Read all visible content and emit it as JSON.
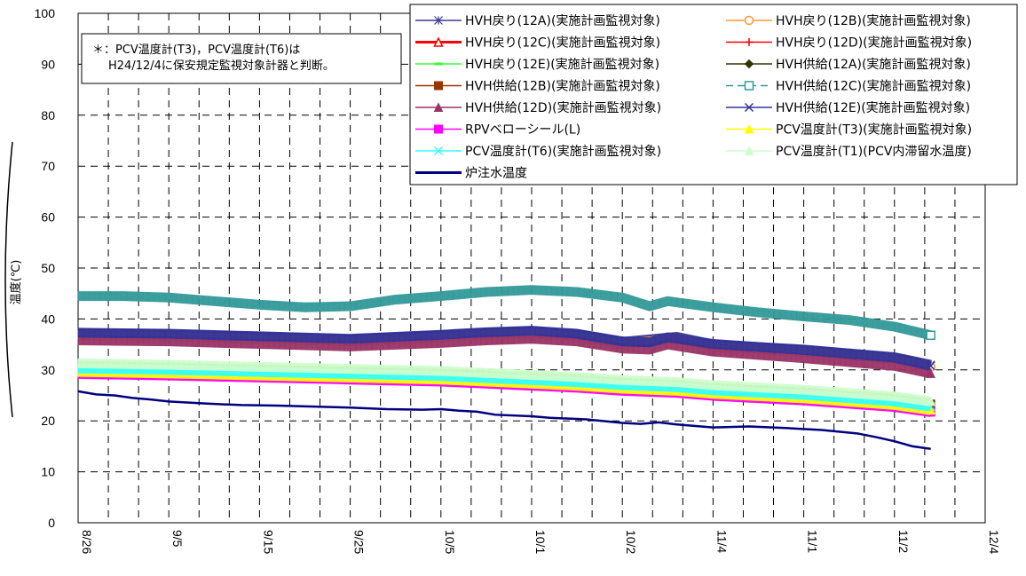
{
  "chart_data": {
    "type": "line",
    "title": "",
    "ylabel": "温度(℃)",
    "xlabel": "",
    "ylim": [
      0,
      100
    ],
    "y_ticks": [
      0,
      10,
      20,
      30,
      40,
      50,
      60,
      70,
      80,
      90,
      100
    ],
    "x_tick_labels": [
      "8/26",
      "9/5",
      "9/15",
      "9/25",
      "10/5",
      "10/1",
      "10/2",
      "11/4",
      "11/1",
      "11/2",
      "12/4"
    ],
    "x_range_days": [
      0,
      100
    ],
    "grid": {
      "major": true,
      "minor_vertical_dashed": true,
      "style": "dashed"
    },
    "legend_position": "top-right",
    "note": {
      "line1": "＊：PCV温度計(T3)，PCV温度計(T6)は",
      "line2": "H24/12/4に保安規定監視対象計器と判断。"
    },
    "series": [
      {
        "name": "HVH戻り(12A)(実施計画監視対象)",
        "color": "#3c3c8c",
        "marker": "star",
        "x": [
          0,
          10,
          20,
          30,
          40,
          45,
          50,
          55,
          60,
          66,
          70,
          80,
          90,
          94
        ],
        "y": [
          37.2,
          37.0,
          36.5,
          36.0,
          36.8,
          37.3,
          37.6,
          37.0,
          35.5,
          36.5,
          35.0,
          34.0,
          32.5,
          31.0
        ]
      },
      {
        "name": "HVH戻り(12B)(実施計画監視対象)",
        "color": "#ff9933",
        "marker": "circle",
        "x": [
          0,
          10,
          20,
          30,
          40,
          45,
          50,
          55,
          60,
          66,
          70,
          80,
          90,
          94
        ],
        "y": [
          36.8,
          36.6,
          36.1,
          35.6,
          36.4,
          36.9,
          37.2,
          36.6,
          35.1,
          36.1,
          34.6,
          33.6,
          32.1,
          30.6
        ]
      },
      {
        "name": "HVH戻り(12C)(実施計画監視対象)",
        "color": "#ff0000",
        "marker": "triangle-open",
        "x": [
          0,
          10,
          20,
          30,
          40,
          45,
          50,
          55,
          60,
          66,
          70,
          80,
          90,
          94
        ],
        "y": [
          29.5,
          29.2,
          28.8,
          28.4,
          28.0,
          27.6,
          27.2,
          26.8,
          26.2,
          25.8,
          25.2,
          24.3,
          23.0,
          22.0
        ]
      },
      {
        "name": "HVH戻り(12D)(実施計画監視対象)",
        "color": "#ff0000",
        "marker": "plus",
        "x": [
          0,
          10,
          20,
          30,
          40,
          45,
          50,
          55,
          60,
          66,
          70,
          80,
          90,
          94
        ],
        "y": [
          29.8,
          29.5,
          29.1,
          28.7,
          28.3,
          27.9,
          27.5,
          27.1,
          26.5,
          26.1,
          25.5,
          24.6,
          23.3,
          22.3
        ]
      },
      {
        "name": "HVH戻り(12E)(実施計画監視対象)",
        "color": "#33ff33",
        "marker": "dash",
        "x": [
          0,
          10,
          20,
          30,
          40,
          45,
          50,
          55,
          60,
          66,
          70,
          80,
          90,
          94
        ],
        "y": [
          30.2,
          29.9,
          29.5,
          29.1,
          28.7,
          28.3,
          27.9,
          27.5,
          26.9,
          26.5,
          25.9,
          25.0,
          23.7,
          22.7
        ]
      },
      {
        "name": "HVH供給(12A)(実施計画監視対象)",
        "color": "#333300",
        "marker": "diamond",
        "x": [
          0,
          10,
          20,
          30,
          40,
          45,
          50,
          55,
          60,
          66,
          70,
          80,
          90,
          94
        ],
        "y": [
          30.5,
          30.2,
          29.8,
          29.4,
          29.0,
          28.6,
          28.2,
          27.8,
          27.2,
          26.8,
          26.2,
          25.3,
          24.0,
          23.0
        ]
      },
      {
        "name": "HVH供給(12B)(実施計画監視対象)",
        "color": "#993300",
        "marker": "square",
        "x": [
          0,
          10,
          20,
          30,
          40,
          45,
          50,
          55,
          60,
          66,
          70,
          80,
          90,
          94
        ],
        "y": [
          30.8,
          30.5,
          30.1,
          29.7,
          29.3,
          28.9,
          28.5,
          28.1,
          27.5,
          27.1,
          26.5,
          25.6,
          24.3,
          23.3
        ]
      },
      {
        "name": "HVH供給(12C)(実施計画監視対象)",
        "color": "#339999",
        "marker": "square-open",
        "dashed": true,
        "x": [
          0,
          5,
          10,
          15,
          20,
          25,
          30,
          35,
          40,
          45,
          50,
          55,
          60,
          63,
          65,
          70,
          75,
          80,
          85,
          90,
          94
        ],
        "y": [
          44.5,
          44.5,
          44.2,
          43.5,
          42.8,
          42.3,
          42.5,
          43.8,
          44.5,
          45.3,
          45.7,
          45.3,
          44.2,
          42.5,
          43.5,
          42.3,
          41.3,
          40.5,
          39.8,
          38.5,
          36.8
        ]
      },
      {
        "name": "HVH供給(12D)(実施計画監視対象)",
        "color": "#993366",
        "marker": "triangle",
        "x": [
          0,
          10,
          20,
          30,
          40,
          45,
          50,
          55,
          60,
          63,
          65,
          70,
          80,
          90,
          94
        ],
        "y": [
          35.8,
          35.6,
          35.1,
          34.6,
          35.3,
          35.8,
          36.1,
          35.6,
          34.2,
          34.0,
          35.0,
          33.6,
          32.3,
          30.8,
          29.3
        ]
      },
      {
        "name": "HVH供給(12E)(実施計画監視対象)",
        "color": "#333399",
        "marker": "x",
        "x": [
          0,
          10,
          20,
          30,
          40,
          45,
          50,
          55,
          60,
          63,
          65,
          70,
          80,
          90,
          94
        ],
        "y": [
          37.3,
          37.1,
          36.6,
          36.1,
          36.9,
          37.4,
          37.7,
          37.1,
          35.6,
          35.4,
          36.4,
          35.1,
          33.9,
          32.4,
          30.8
        ]
      },
      {
        "name": "RPVベローシール(L)",
        "color": "#ff00ff",
        "marker": "square",
        "x": [
          0,
          10,
          20,
          30,
          40,
          45,
          50,
          55,
          60,
          66,
          70,
          80,
          90,
          94
        ],
        "y": [
          29.2,
          28.9,
          28.5,
          28.1,
          27.7,
          27.3,
          26.9,
          26.5,
          25.9,
          25.5,
          24.9,
          24.0,
          22.7,
          21.7
        ]
      },
      {
        "name": "PCV温度計(T3)(実施計画監視対象)",
        "color": "#ffff00",
        "marker": "triangle",
        "x": [
          0,
          10,
          20,
          30,
          40,
          45,
          50,
          55,
          60,
          66,
          70,
          80,
          90,
          94
        ],
        "y": [
          29.6,
          29.3,
          28.9,
          28.5,
          28.1,
          27.7,
          27.3,
          26.9,
          26.3,
          25.9,
          25.3,
          24.4,
          23.1,
          22.1
        ]
      },
      {
        "name": "PCV温度計(T6)(実施計画監視対象)",
        "color": "#33ffff",
        "marker": "x",
        "x": [
          0,
          10,
          20,
          30,
          40,
          45,
          50,
          55,
          60,
          66,
          70,
          80,
          90,
          94
        ],
        "y": [
          30.3,
          30.0,
          29.6,
          29.2,
          28.8,
          28.4,
          28.0,
          27.6,
          27.0,
          26.6,
          26.0,
          25.1,
          23.8,
          22.8
        ]
      },
      {
        "name": "PCV温度計(T1)(PCV内滞留水温度)",
        "color": "#ccffcc",
        "marker": "triangle",
        "x": [
          0,
          10,
          20,
          30,
          40,
          45,
          50,
          55,
          60,
          66,
          70,
          80,
          90,
          94
        ],
        "y": [
          31.3,
          31.0,
          30.6,
          30.2,
          29.8,
          29.4,
          29.0,
          28.6,
          28.0,
          27.6,
          27.0,
          26.1,
          24.8,
          23.8
        ]
      },
      {
        "name": "炉注水温度",
        "color": "#000080",
        "marker": "none",
        "thick": true,
        "x": [
          0,
          2,
          4,
          6,
          8,
          10,
          14,
          18,
          22,
          26,
          30,
          34,
          38,
          40,
          42,
          44,
          46,
          50,
          52,
          56,
          60,
          62,
          64,
          66,
          70,
          74,
          78,
          82,
          86,
          88,
          90,
          92,
          94
        ],
        "y": [
          25.8,
          25.2,
          25.0,
          24.5,
          24.2,
          23.8,
          23.4,
          23.1,
          23.0,
          22.8,
          22.6,
          22.3,
          22.2,
          22.3,
          22.0,
          21.8,
          21.2,
          20.9,
          20.6,
          20.3,
          19.6,
          19.4,
          19.7,
          19.3,
          18.7,
          18.9,
          18.6,
          18.2,
          17.5,
          16.8,
          16.0,
          15.0,
          14.5
        ]
      }
    ]
  }
}
